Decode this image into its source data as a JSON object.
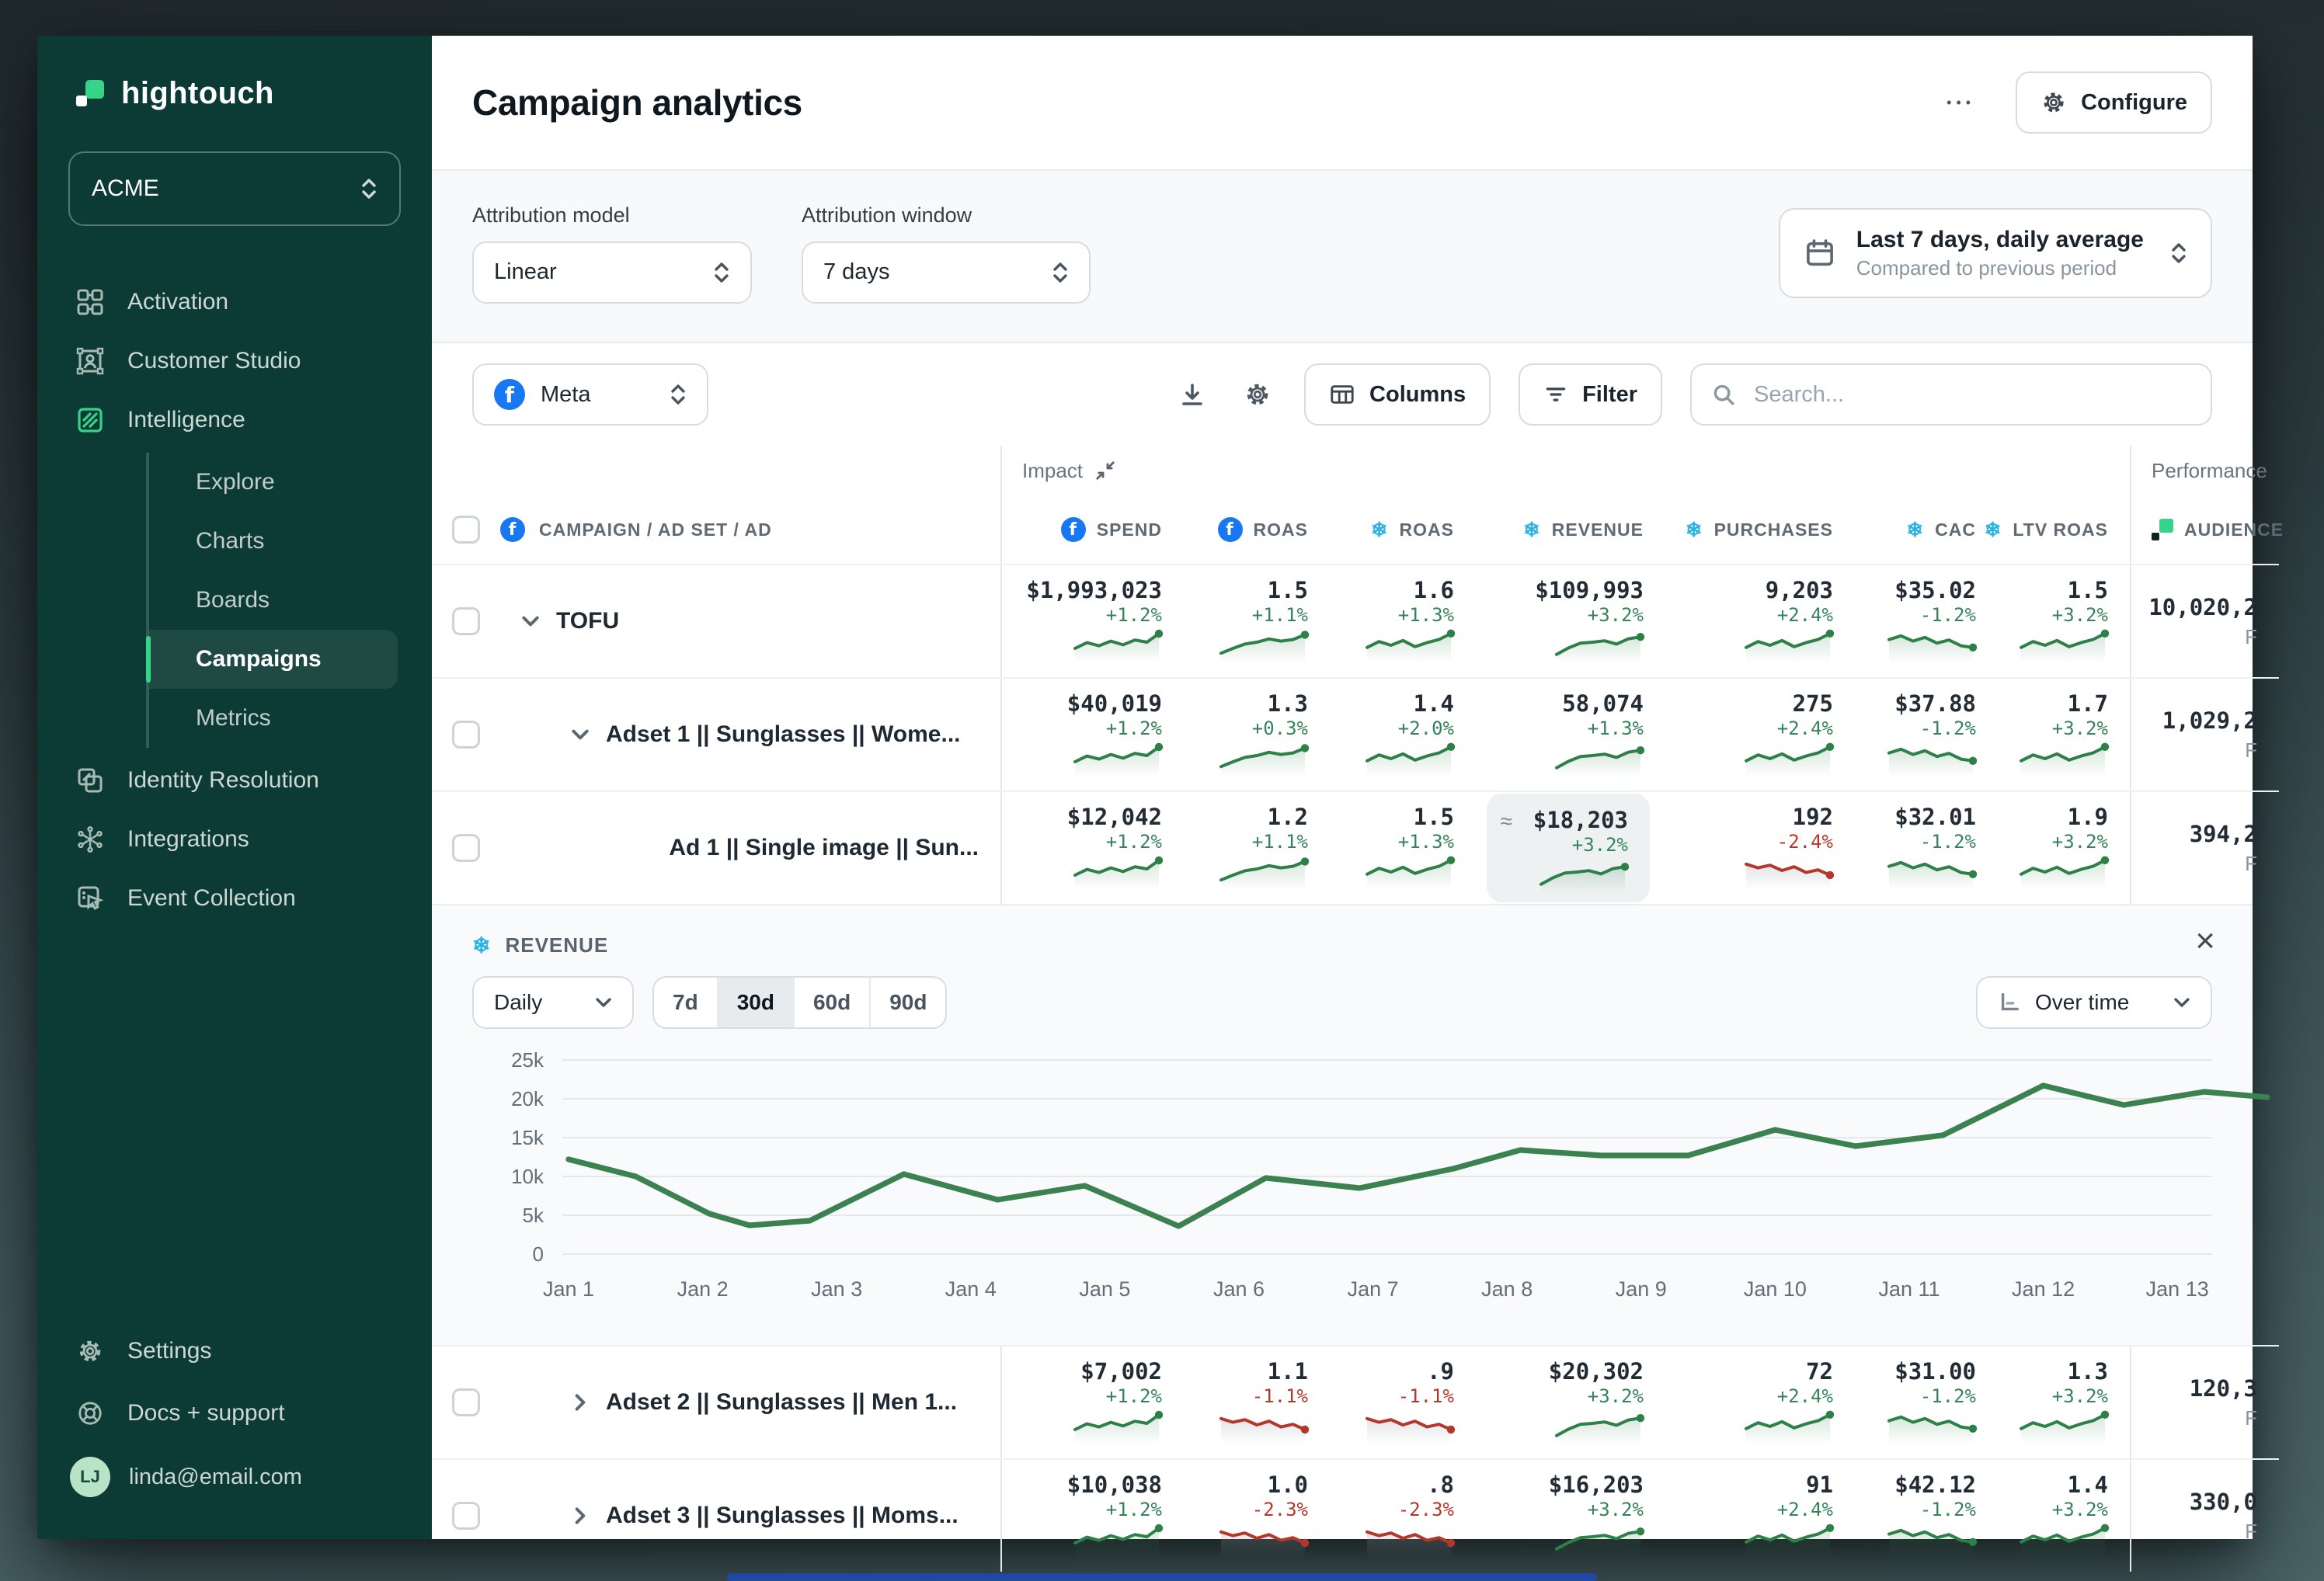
{
  "theme": {
    "accent_green": "#35d488",
    "sidebar_bg": "#0c3b35",
    "meta_blue": "#1877F2",
    "snowflake_blue": "#2ab2e3",
    "positive": "#36835b",
    "negative": "#b5372c",
    "chart_line": "#3c8150",
    "highlight_bg": "#edf1f2",
    "panel_bg": "#f8fafb"
  },
  "sidebar": {
    "logo_text": "hightouch",
    "workspace": "ACME",
    "items": [
      {
        "label": "Activation"
      },
      {
        "label": "Customer Studio"
      },
      {
        "label": "Intelligence"
      }
    ],
    "sub_items": [
      {
        "label": "Explore"
      },
      {
        "label": "Charts"
      },
      {
        "label": "Boards"
      },
      {
        "label": "Campaigns",
        "active": true
      },
      {
        "label": "Metrics"
      }
    ],
    "items_lower": [
      {
        "label": "Identity Resolution"
      },
      {
        "label": "Integrations"
      },
      {
        "label": "Event Collection"
      }
    ],
    "footer": [
      {
        "label": "Settings"
      },
      {
        "label": "Docs + support"
      }
    ],
    "user_initials": "LJ",
    "user_email": "linda@email.com"
  },
  "header": {
    "title": "Campaign analytics",
    "more_label": "•••",
    "configure_label": "Configure"
  },
  "filters": {
    "attribution_model_label": "Attribution model",
    "attribution_model_value": "Linear",
    "attribution_window_label": "Attribution window",
    "attribution_window_value": "7 days",
    "date_range_title": "Last 7 days, daily average",
    "date_range_subtitle": "Compared to previous period"
  },
  "toolbar": {
    "source_value": "Meta",
    "columns_label": "Columns",
    "filter_label": "Filter",
    "search_placeholder": "Search..."
  },
  "table": {
    "group_headers": {
      "impact": "Impact",
      "performance": "Performance"
    },
    "columns": [
      {
        "label": "CAMPAIGN / AD SET / AD",
        "icon": "meta"
      },
      {
        "label": "SPEND",
        "icon": "meta"
      },
      {
        "label": "ROAS",
        "icon": "meta"
      },
      {
        "label": "ROAS",
        "icon": "snowflake"
      },
      {
        "label": "REVENUE",
        "icon": "snowflake"
      },
      {
        "label": "PURCHASES",
        "icon": "snowflake"
      },
      {
        "label": "CAC",
        "icon": "snowflake"
      },
      {
        "label": "LTV ROAS",
        "icon": "snowflake"
      },
      {
        "label": "AUDIENCE",
        "icon": "hightouch"
      }
    ],
    "spark_shapes": {
      "riseWavy": [
        0.62,
        0.4,
        0.52,
        0.34,
        0.48,
        0.3,
        0.38,
        0.06
      ],
      "riseSmooth": [
        0.8,
        0.62,
        0.45,
        0.38,
        0.26,
        0.34,
        0.28,
        0.1
      ],
      "riseWavy2": [
        0.58,
        0.36,
        0.5,
        0.32,
        0.55,
        0.4,
        0.28,
        0.05
      ],
      "riseSmooth2": [
        0.85,
        0.6,
        0.42,
        0.38,
        0.33,
        0.45,
        0.25,
        0.18
      ],
      "fallWavy": [
        0.28,
        0.14,
        0.34,
        0.2,
        0.42,
        0.3,
        0.52,
        0.58
      ],
      "fallWavy2": [
        0.2,
        0.34,
        0.24,
        0.44,
        0.3,
        0.52,
        0.42,
        0.62
      ]
    },
    "rows": [
      {
        "level": 0,
        "caret": "down",
        "name": "TOFU",
        "audience": "10,020,2",
        "audience_sub": "F",
        "metrics": [
          {
            "value": "$1,993,023",
            "change": "+1.2%",
            "dir": "up",
            "spark": "riseWavy"
          },
          {
            "value": "1.5",
            "change": "+1.1%",
            "dir": "up",
            "spark": "riseSmooth"
          },
          {
            "value": "1.6",
            "change": "+1.3%",
            "dir": "up",
            "spark": "riseWavy2"
          },
          {
            "value": "$109,993",
            "change": "+3.2%",
            "dir": "up",
            "spark": "riseSmooth2"
          },
          {
            "value": "9,203",
            "change": "+2.4%",
            "dir": "up",
            "spark": "riseWavy2"
          },
          {
            "value": "$35.02",
            "change": "-1.2%",
            "dir": "up",
            "spark": "fallWavy"
          },
          {
            "value": "1.5",
            "change": "+3.2%",
            "dir": "up",
            "spark": "riseWavy2"
          }
        ]
      },
      {
        "level": 1,
        "caret": "down",
        "name": "Adset 1 || Sunglasses || Wome...",
        "audience": "1,029,2",
        "audience_sub": "F",
        "metrics": [
          {
            "value": "$40,019",
            "change": "+1.2%",
            "dir": "up",
            "spark": "riseWavy"
          },
          {
            "value": "1.3",
            "change": "+0.3%",
            "dir": "up",
            "spark": "riseSmooth"
          },
          {
            "value": "1.4",
            "change": "+2.0%",
            "dir": "up",
            "spark": "riseWavy2"
          },
          {
            "value": "58,074",
            "change": "+1.3%",
            "dir": "up",
            "spark": "riseSmooth2"
          },
          {
            "value": "275",
            "change": "+2.4%",
            "dir": "up",
            "spark": "riseWavy2"
          },
          {
            "value": "$37.88",
            "change": "-1.2%",
            "dir": "up",
            "spark": "fallWavy"
          },
          {
            "value": "1.7",
            "change": "+3.2%",
            "dir": "up",
            "spark": "riseWavy2"
          }
        ]
      },
      {
        "level": 2,
        "caret": null,
        "name": "Ad 1 || Single image || Sun...",
        "audience": "394,2",
        "audience_sub": "F",
        "revenue_highlight": true,
        "metrics": [
          {
            "value": "$12,042",
            "change": "+1.2%",
            "dir": "up",
            "spark": "riseWavy"
          },
          {
            "value": "1.2",
            "change": "+1.1%",
            "dir": "up",
            "spark": "riseSmooth"
          },
          {
            "value": "1.5",
            "change": "+1.3%",
            "dir": "up",
            "spark": "riseWavy2"
          },
          {
            "value": "$18,203",
            "change": "+3.2%",
            "dir": "up",
            "spark": "riseSmooth2"
          },
          {
            "value": "192",
            "change": "-2.4%",
            "dir": "down",
            "spark": "fallWavy2"
          },
          {
            "value": "$32.01",
            "change": "-1.2%",
            "dir": "up",
            "spark": "fallWavy"
          },
          {
            "value": "1.9",
            "change": "+3.2%",
            "dir": "up",
            "spark": "riseWavy2"
          }
        ]
      },
      {
        "level": 1,
        "caret": "right",
        "name": "Adset 2 || Sunglasses || Men 1...",
        "audience": "120,3",
        "audience_sub": "F",
        "metrics": [
          {
            "value": "$7,002",
            "change": "+1.2%",
            "dir": "up",
            "spark": "riseWavy"
          },
          {
            "value": "1.1",
            "change": "-1.1%",
            "dir": "down",
            "spark": "fallWavy2"
          },
          {
            "value": ".9",
            "change": "-1.1%",
            "dir": "down",
            "spark": "fallWavy2"
          },
          {
            "value": "$20,302",
            "change": "+3.2%",
            "dir": "up",
            "spark": "riseSmooth2"
          },
          {
            "value": "72",
            "change": "+2.4%",
            "dir": "up",
            "spark": "riseWavy2"
          },
          {
            "value": "$31.00",
            "change": "-1.2%",
            "dir": "up",
            "spark": "fallWavy"
          },
          {
            "value": "1.3",
            "change": "+3.2%",
            "dir": "up",
            "spark": "riseWavy2"
          }
        ]
      },
      {
        "level": 1,
        "caret": "right",
        "name": "Adset 3 || Sunglasses || Moms...",
        "audience": "330,0",
        "audience_sub": "F",
        "metrics": [
          {
            "value": "$10,038",
            "change": "+1.2%",
            "dir": "up",
            "spark": "riseWavy"
          },
          {
            "value": "1.0",
            "change": "-2.3%",
            "dir": "down",
            "spark": "fallWavy2"
          },
          {
            "value": ".8",
            "change": "-2.3%",
            "dir": "down",
            "spark": "fallWavy2"
          },
          {
            "value": "$16,203",
            "change": "+3.2%",
            "dir": "up",
            "spark": "riseSmooth2"
          },
          {
            "value": "91",
            "change": "+2.4%",
            "dir": "up",
            "spark": "riseWavy2"
          },
          {
            "value": "$42.12",
            "change": "-1.2%",
            "dir": "up",
            "spark": "fallWavy"
          },
          {
            "value": "1.4",
            "change": "+3.2%",
            "dir": "up",
            "spark": "riseWavy2"
          }
        ]
      }
    ]
  },
  "revenue_panel": {
    "title": "REVENUE",
    "granularity_value": "Daily",
    "ranges": [
      "7d",
      "30d",
      "60d",
      "90d"
    ],
    "active_range": "30d",
    "view_value": "Over time",
    "close_label": "×"
  },
  "chart_data": {
    "type": "line",
    "title": "REVENUE",
    "xlabel": "",
    "ylabel": "",
    "ylim": [
      0,
      25000
    ],
    "y_ticks": [
      {
        "value": 0,
        "label": "0"
      },
      {
        "value": 5000,
        "label": "5k"
      },
      {
        "value": 10000,
        "label": "10k"
      },
      {
        "value": 15000,
        "label": "15k"
      },
      {
        "value": 20000,
        "label": "20k"
      },
      {
        "value": 25000,
        "label": "25k"
      }
    ],
    "x_ticks": [
      "Jan 1",
      "Jan 2",
      "Jan 3",
      "Jan 4",
      "Jan 5",
      "Jan 6",
      "Jan 7",
      "Jan 8",
      "Jan 9",
      "Jan 10",
      "Jan 11",
      "Jan 12",
      "Jan 13"
    ],
    "series": [
      {
        "name": "Revenue",
        "points": [
          [
            1,
            12200
          ],
          [
            1.5,
            10000
          ],
          [
            2.05,
            5200
          ],
          [
            2.35,
            3700
          ],
          [
            2.8,
            4300
          ],
          [
            3.5,
            10300
          ],
          [
            4.2,
            7000
          ],
          [
            4.85,
            8800
          ],
          [
            5.55,
            3600
          ],
          [
            6.2,
            9800
          ],
          [
            6.9,
            8500
          ],
          [
            7.6,
            11000
          ],
          [
            8.1,
            13400
          ],
          [
            8.7,
            12700
          ],
          [
            9.35,
            12700
          ],
          [
            10,
            16000
          ],
          [
            10.6,
            13900
          ],
          [
            11.25,
            15300
          ],
          [
            12,
            21700
          ],
          [
            12.6,
            19200
          ],
          [
            13.2,
            20900
          ],
          [
            13.67,
            20200
          ]
        ]
      }
    ],
    "grid": true,
    "legend": false
  }
}
